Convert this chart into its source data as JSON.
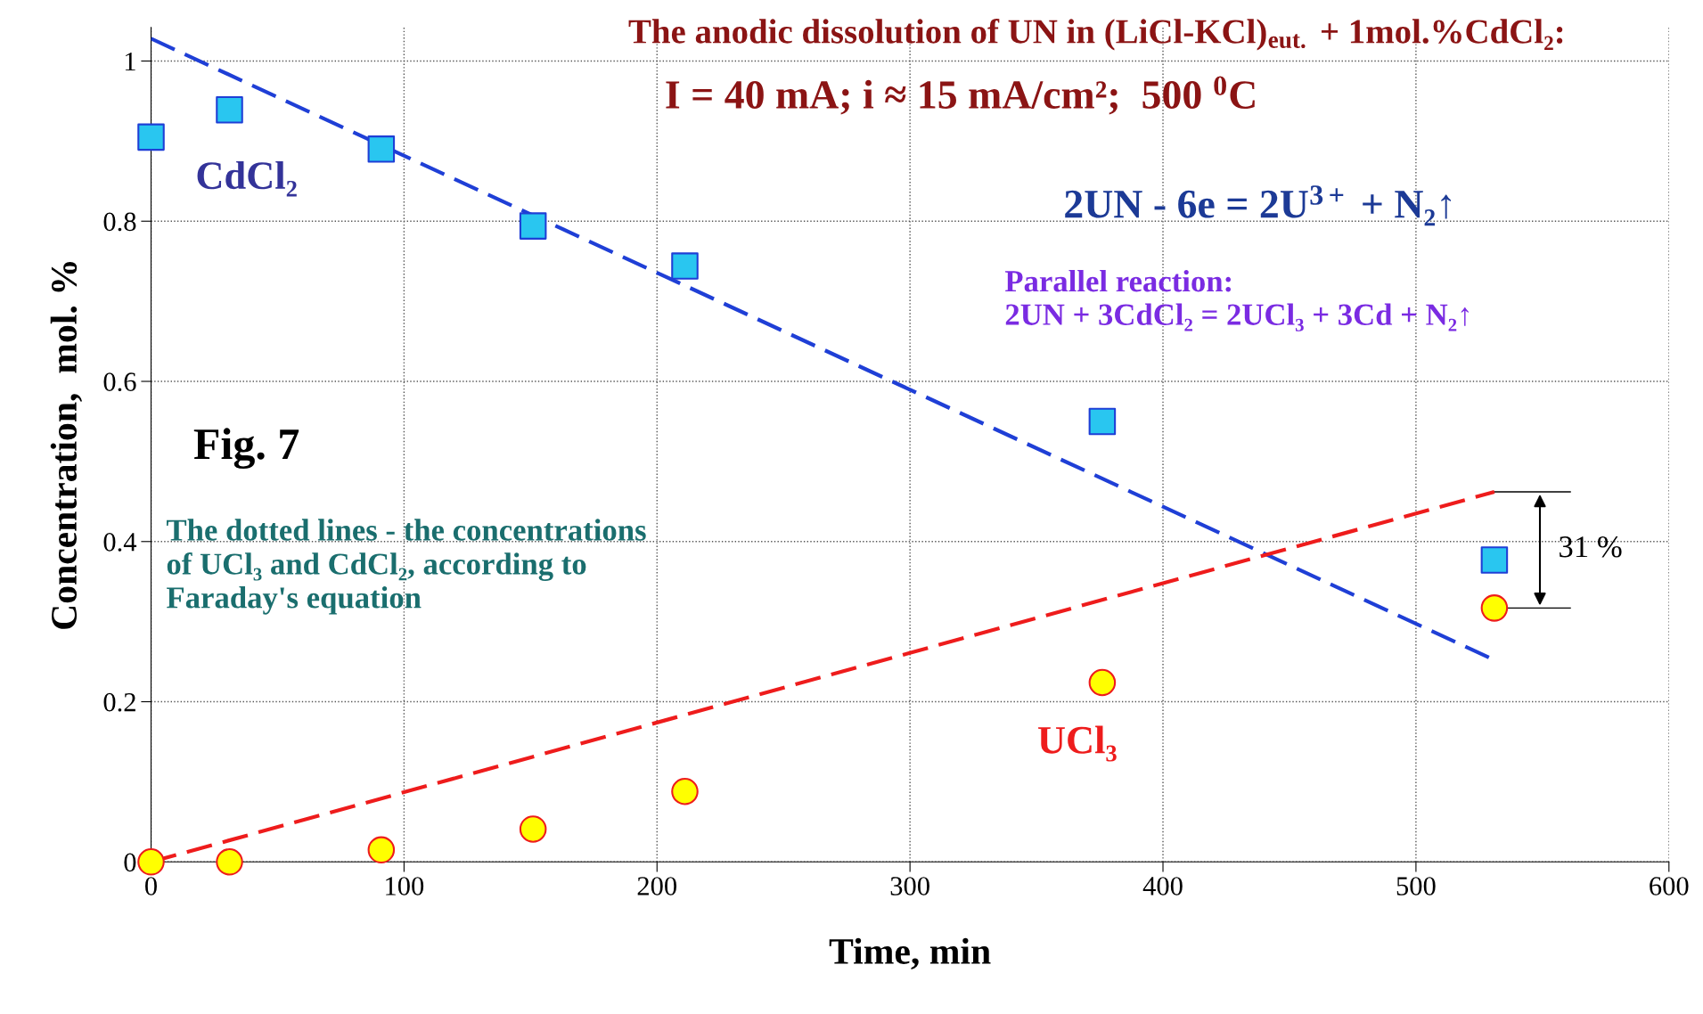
{
  "chart_data": {
    "type": "scatter",
    "title": "The anodic dissolution of UN in (LiCl-KCl)$_{eut.}$ + 1mol.%CdCl₂:",
    "subtitle": "I = 40 mA; i ≈ 15 mA/cm²;  500 $^{0}$C",
    "xlabel": "Time, min",
    "ylabel": "Concentration,  mol. %",
    "series": [
      {
        "name": "CdCl₂",
        "color": "#29c6f0",
        "marker": "square",
        "x": [
          0,
          31,
          91,
          151,
          211,
          376,
          531
        ],
        "values": [
          0.905,
          0.939,
          0.89,
          0.794,
          0.744,
          0.55,
          0.377
        ]
      },
      {
        "name": "UCl₃",
        "color": "#ffff00",
        "marker": "circle",
        "x": [
          0,
          31,
          91,
          151,
          211,
          376,
          531
        ],
        "values": [
          0,
          0,
          0.015,
          0.041,
          0.088,
          0.224,
          0.317
        ]
      },
      {
        "type": "line",
        "color": "#1f3fd6",
        "line_style": "dashed",
        "x": [
          0,
          531
        ],
        "values": [
          1.028,
          0.252
        ]
      },
      {
        "type": "line",
        "color": "#ee1c1c",
        "line_style": "dashed",
        "x": [
          0,
          531
        ],
        "values": [
          0,
          0.462
        ]
      }
    ],
    "annotations": [
      "2UN - 6e = 2U$^{3+}$ + N₂↑",
      "Parallel reaction:\n2UN + 3CdCl₂ = 2UCl₃ + 3Cd + N₂↑",
      "Fig. 7",
      "The dotted lines - the concentrations\nof UCl₃ and CdCl₂, according to\nFaraday's equation",
      {
        "text": "31 %",
        "x": 531,
        "y": 0.39
      }
    ],
    "xlim": [
      0,
      600
    ],
    "ylim": [
      0,
      1.042
    ],
    "xticks": [
      0,
      100,
      200,
      300,
      400,
      500,
      600
    ],
    "yticks": [
      0,
      0.2,
      0.4,
      0.6,
      0.8,
      1
    ],
    "grid": true,
    "legend": false
  }
}
